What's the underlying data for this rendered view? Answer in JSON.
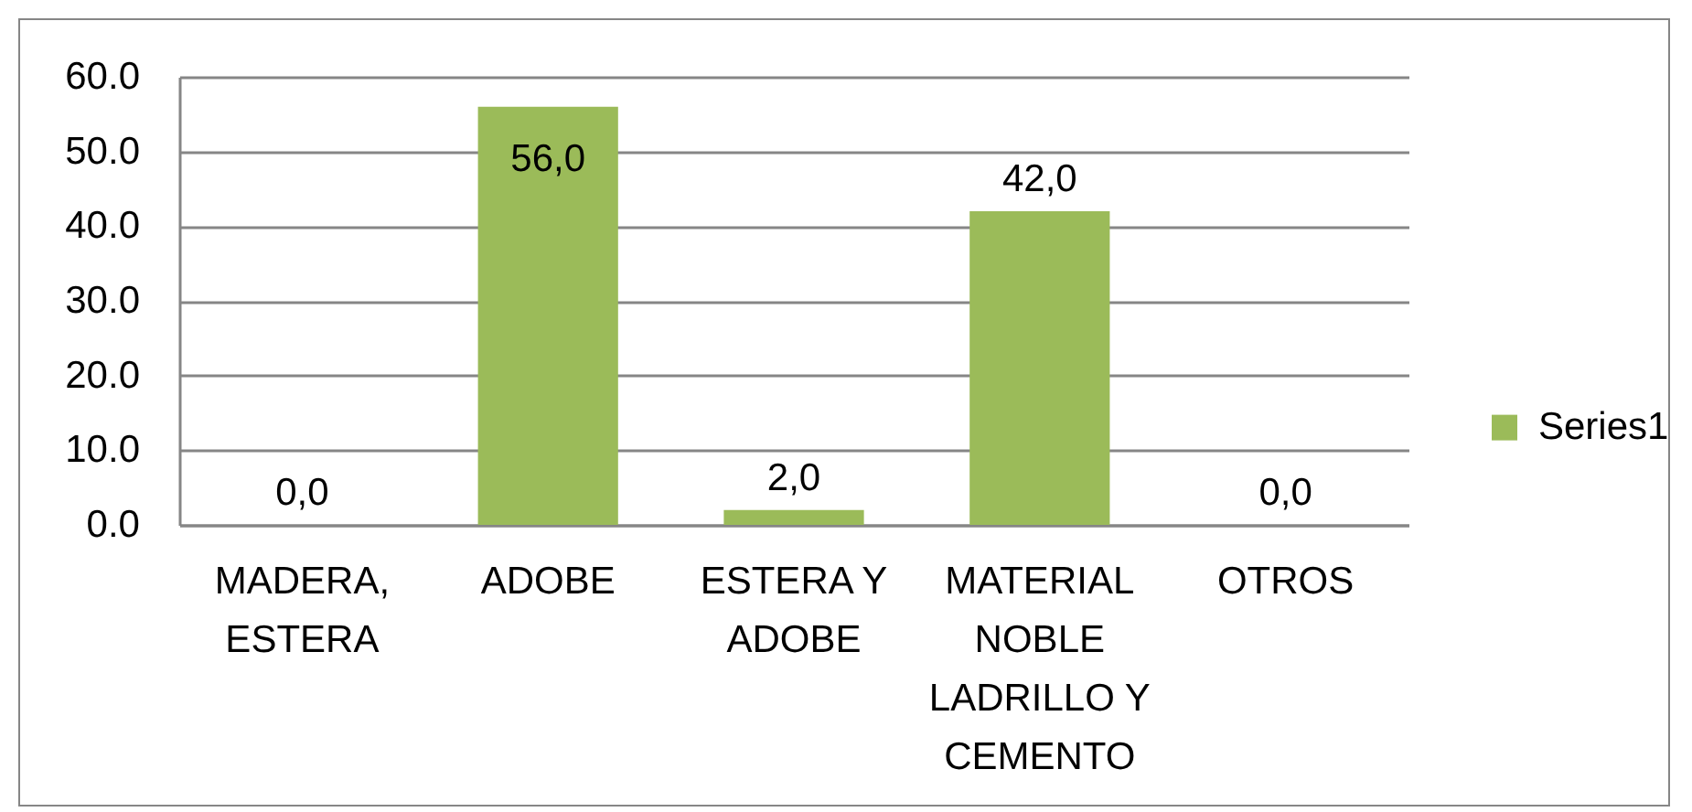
{
  "chart_data": {
    "type": "bar",
    "categories": [
      "MADERA, ESTERA",
      "ADOBE",
      "ESTERA Y ADOBE",
      "MATERIAL NOBLE LADRILLO Y CEMENTO",
      "OTROS"
    ],
    "series": [
      {
        "name": "Series1",
        "color": "#9bbb59",
        "values": [
          0,
          56,
          2,
          42,
          0
        ],
        "value_labels": [
          "0,0",
          "56,0",
          "2,0",
          "42,0",
          "0,0"
        ]
      }
    ],
    "ylim": [
      0,
      60
    ],
    "yticks": [
      {
        "value": 0,
        "label": "0.0"
      },
      {
        "value": 10,
        "label": "10.0"
      },
      {
        "value": 20,
        "label": "20.0"
      },
      {
        "value": 30,
        "label": "30.0"
      },
      {
        "value": 40,
        "label": "40.0"
      },
      {
        "value": 50,
        "label": "50.0"
      },
      {
        "value": 60,
        "label": "60.0"
      }
    ],
    "grid": "y",
    "legend": "right"
  }
}
